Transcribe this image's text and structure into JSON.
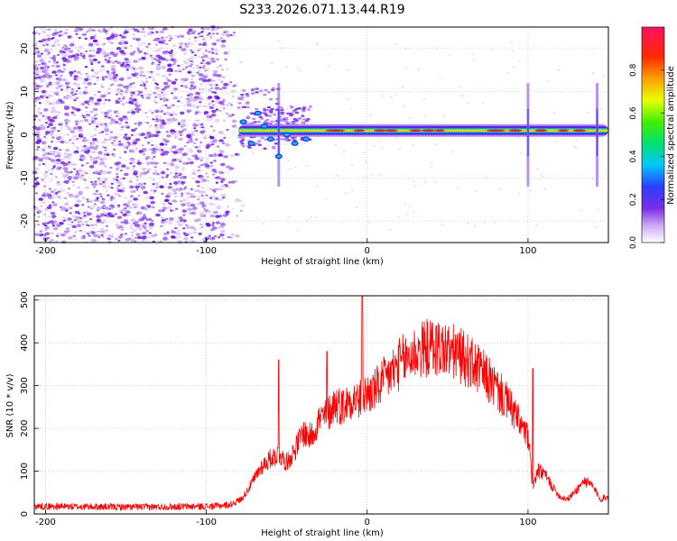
{
  "chart_data": [
    {
      "type": "heatmap",
      "title": "S233.2026.071.13.44.R19",
      "xlabel": "Height of straight line (km)",
      "ylabel": "Frequency (Hz)",
      "xlim": [
        -207,
        150
      ],
      "ylim": [
        -25,
        25
      ],
      "xticks": [
        -200,
        -100,
        0,
        100
      ],
      "yticks": [
        -20,
        -10,
        0,
        10,
        20
      ],
      "colorbar": {
        "label": "Normalized spectral amplitude",
        "range": [
          0,
          1
        ],
        "ticks": [
          0,
          0.2,
          0.4,
          0.6,
          0.8
        ],
        "tick_labels": [
          "0.0",
          "0.2",
          "0.4",
          "0.6",
          "0.8"
        ]
      },
      "features": {
        "noise_region_x": [
          -207,
          -77
        ],
        "carrier_frequency_hz": 1,
        "carrier_start_x": -80,
        "spikes_x": [
          -55,
          100,
          143
        ]
      }
    },
    {
      "type": "line",
      "xlabel": "Height of straight line (km)",
      "ylabel": "SNR (10 * v/v)",
      "xlim": [
        -207,
        150
      ],
      "ylim": [
        0,
        510
      ],
      "xticks": [
        -200,
        -100,
        0,
        100
      ],
      "yticks": [
        0,
        100,
        200,
        300,
        400,
        500
      ],
      "series": [
        {
          "name": "SNR",
          "color": "#ff0000",
          "x": [
            -207,
            -180,
            -150,
            -120,
            -95,
            -85,
            -78,
            -72,
            -66,
            -60,
            -55,
            -50,
            -45,
            -40,
            -35,
            -30,
            -25,
            -20,
            -15,
            -10,
            -5,
            0,
            5,
            10,
            15,
            20,
            25,
            30,
            35,
            40,
            45,
            50,
            55,
            60,
            65,
            70,
            75,
            80,
            85,
            90,
            95,
            100,
            103,
            106,
            110,
            115,
            120,
            125,
            130,
            135,
            140,
            145,
            150
          ],
          "values": [
            18,
            17,
            16,
            17,
            18,
            22,
            35,
            70,
            110,
            130,
            140,
            120,
            150,
            190,
            180,
            220,
            230,
            260,
            250,
            270,
            265,
            280,
            290,
            310,
            330,
            350,
            365,
            378,
            385,
            390,
            388,
            382,
            375,
            365,
            350,
            335,
            315,
            295,
            270,
            245,
            210,
            180,
            60,
            100,
            95,
            65,
            40,
            35,
            55,
            78,
            65,
            35,
            40
          ]
        }
      ]
    }
  ]
}
